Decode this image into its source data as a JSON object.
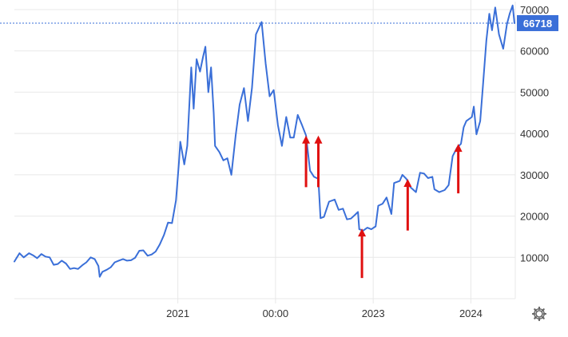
{
  "chart_data": {
    "type": "line",
    "title": "",
    "xlabel": "",
    "ylabel": "",
    "ylim": [
      0,
      70000
    ],
    "y_ticks": [
      10000,
      20000,
      30000,
      40000,
      50000,
      60000,
      70000
    ],
    "y_tick_labels": [
      "10000",
      "20000",
      "30000",
      "40000",
      "50000",
      "60000",
      "70000"
    ],
    "xlim": [
      "2019-05-01",
      "2024-06-15"
    ],
    "x_ticks": [
      "2021-01-01",
      "2022-01-01",
      "2023-01-01",
      "2024-01-01"
    ],
    "x_tick_labels": [
      "2021",
      "00:00",
      "2023",
      "2024"
    ],
    "grid": true,
    "line_color": "#3a6fd8",
    "current_price": 66718,
    "current_price_label": "66718",
    "badge_color": "#3a6fd8",
    "arrow_color": "#e01010",
    "annotations": [
      {
        "type": "arrow-up",
        "x": "2022-04-25",
        "y_from": 27000,
        "y_to": 39500
      },
      {
        "type": "arrow-up",
        "x": "2022-06-10",
        "y_from": 27000,
        "y_to": 39500
      },
      {
        "type": "arrow-up",
        "x": "2022-11-20",
        "y_from": 5000,
        "y_to": 17000
      },
      {
        "type": "arrow-up",
        "x": "2023-05-10",
        "y_from": 16500,
        "y_to": 29000
      },
      {
        "type": "arrow-up",
        "x": "2023-11-15",
        "y_from": 25500,
        "y_to": 37500
      }
    ],
    "series": [
      {
        "values": [
          [
            "2019-05-01",
            9000
          ],
          [
            "2019-05-20",
            11000
          ],
          [
            "2019-06-05",
            10000
          ],
          [
            "2019-06-25",
            11000
          ],
          [
            "2019-07-10",
            10500
          ],
          [
            "2019-07-25",
            9800
          ],
          [
            "2019-08-10",
            10800
          ],
          [
            "2019-08-25",
            10200
          ],
          [
            "2019-09-10",
            10000
          ],
          [
            "2019-09-25",
            8200
          ],
          [
            "2019-10-10",
            8400
          ],
          [
            "2019-10-25",
            9200
          ],
          [
            "2019-11-10",
            8500
          ],
          [
            "2019-11-25",
            7200
          ],
          [
            "2019-12-10",
            7400
          ],
          [
            "2019-12-25",
            7200
          ],
          [
            "2020-01-10",
            8100
          ],
          [
            "2020-01-25",
            8800
          ],
          [
            "2020-02-10",
            10000
          ],
          [
            "2020-02-25",
            9600
          ],
          [
            "2020-03-10",
            7900
          ],
          [
            "2020-03-15",
            5300
          ],
          [
            "2020-03-25",
            6500
          ],
          [
            "2020-04-10",
            7000
          ],
          [
            "2020-04-25",
            7600
          ],
          [
            "2020-05-10",
            8800
          ],
          [
            "2020-05-25",
            9200
          ],
          [
            "2020-06-10",
            9600
          ],
          [
            "2020-06-25",
            9200
          ],
          [
            "2020-07-10",
            9300
          ],
          [
            "2020-07-25",
            9900
          ],
          [
            "2020-08-10",
            11600
          ],
          [
            "2020-08-25",
            11700
          ],
          [
            "2020-09-10",
            10400
          ],
          [
            "2020-09-25",
            10700
          ],
          [
            "2020-10-10",
            11400
          ],
          [
            "2020-10-25",
            13100
          ],
          [
            "2020-11-10",
            15400
          ],
          [
            "2020-11-25",
            18400
          ],
          [
            "2020-12-10",
            18300
          ],
          [
            "2020-12-25",
            23800
          ],
          [
            "2021-01-05",
            33000
          ],
          [
            "2021-01-10",
            38000
          ],
          [
            "2021-01-25",
            32500
          ],
          [
            "2021-02-05",
            37000
          ],
          [
            "2021-02-20",
            56000
          ],
          [
            "2021-03-01",
            46000
          ],
          [
            "2021-03-12",
            58000
          ],
          [
            "2021-03-25",
            55000
          ],
          [
            "2021-04-05",
            58500
          ],
          [
            "2021-04-14",
            61000
          ],
          [
            "2021-04-25",
            50000
          ],
          [
            "2021-05-05",
            56000
          ],
          [
            "2021-05-15",
            45000
          ],
          [
            "2021-05-20",
            37000
          ],
          [
            "2021-06-05",
            35500
          ],
          [
            "2021-06-20",
            33500
          ],
          [
            "2021-07-05",
            34000
          ],
          [
            "2021-07-20",
            30000
          ],
          [
            "2021-08-05",
            39500
          ],
          [
            "2021-08-20",
            47000
          ],
          [
            "2021-09-05",
            51000
          ],
          [
            "2021-09-20",
            43000
          ],
          [
            "2021-10-05",
            51000
          ],
          [
            "2021-10-20",
            64000
          ],
          [
            "2021-11-10",
            67000
          ],
          [
            "2021-11-25",
            57000
          ],
          [
            "2021-12-10",
            49000
          ],
          [
            "2021-12-25",
            50500
          ],
          [
            "2022-01-10",
            42000
          ],
          [
            "2022-01-25",
            37000
          ],
          [
            "2022-02-10",
            44000
          ],
          [
            "2022-02-25",
            39000
          ],
          [
            "2022-03-10",
            39000
          ],
          [
            "2022-03-25",
            44500
          ],
          [
            "2022-04-10",
            42000
          ],
          [
            "2022-04-25",
            39500
          ],
          [
            "2022-05-10",
            31000
          ],
          [
            "2022-05-25",
            29500
          ],
          [
            "2022-06-10",
            29000
          ],
          [
            "2022-06-18",
            19500
          ],
          [
            "2022-07-01",
            19800
          ],
          [
            "2022-07-20",
            23500
          ],
          [
            "2022-08-10",
            24000
          ],
          [
            "2022-08-25",
            21500
          ],
          [
            "2022-09-10",
            21800
          ],
          [
            "2022-09-25",
            19200
          ],
          [
            "2022-10-10",
            19400
          ],
          [
            "2022-10-25",
            20300
          ],
          [
            "2022-11-05",
            21000
          ],
          [
            "2022-11-10",
            16800
          ],
          [
            "2022-11-25",
            16500
          ],
          [
            "2022-12-10",
            17200
          ],
          [
            "2022-12-25",
            16800
          ],
          [
            "2023-01-10",
            17500
          ],
          [
            "2023-01-20",
            22500
          ],
          [
            "2023-02-05",
            23000
          ],
          [
            "2023-02-20",
            24500
          ],
          [
            "2023-03-10",
            20500
          ],
          [
            "2023-03-20",
            28000
          ],
          [
            "2023-04-10",
            28500
          ],
          [
            "2023-04-20",
            30000
          ],
          [
            "2023-05-05",
            29000
          ],
          [
            "2023-05-20",
            27000
          ],
          [
            "2023-06-10",
            25800
          ],
          [
            "2023-06-25",
            30500
          ],
          [
            "2023-07-10",
            30300
          ],
          [
            "2023-07-25",
            29200
          ],
          [
            "2023-08-10",
            29500
          ],
          [
            "2023-08-18",
            26500
          ],
          [
            "2023-09-05",
            25800
          ],
          [
            "2023-09-25",
            26300
          ],
          [
            "2023-10-10",
            27500
          ],
          [
            "2023-10-25",
            34500
          ],
          [
            "2023-11-10",
            36500
          ],
          [
            "2023-11-25",
            37500
          ],
          [
            "2023-12-05",
            41500
          ],
          [
            "2023-12-15",
            43000
          ],
          [
            "2024-01-05",
            44000
          ],
          [
            "2024-01-12",
            46500
          ],
          [
            "2024-01-22",
            39800
          ],
          [
            "2024-02-05",
            43000
          ],
          [
            "2024-02-15",
            51500
          ],
          [
            "2024-02-28",
            62500
          ],
          [
            "2024-03-10",
            69000
          ],
          [
            "2024-03-20",
            65000
          ],
          [
            "2024-04-01",
            70500
          ],
          [
            "2024-04-15",
            64000
          ],
          [
            "2024-05-01",
            60500
          ],
          [
            "2024-05-15",
            66500
          ],
          [
            "2024-05-25",
            69000
          ],
          [
            "2024-06-05",
            71000
          ],
          [
            "2024-06-12",
            66718
          ]
        ]
      }
    ]
  },
  "settings_icon": "gear-icon"
}
